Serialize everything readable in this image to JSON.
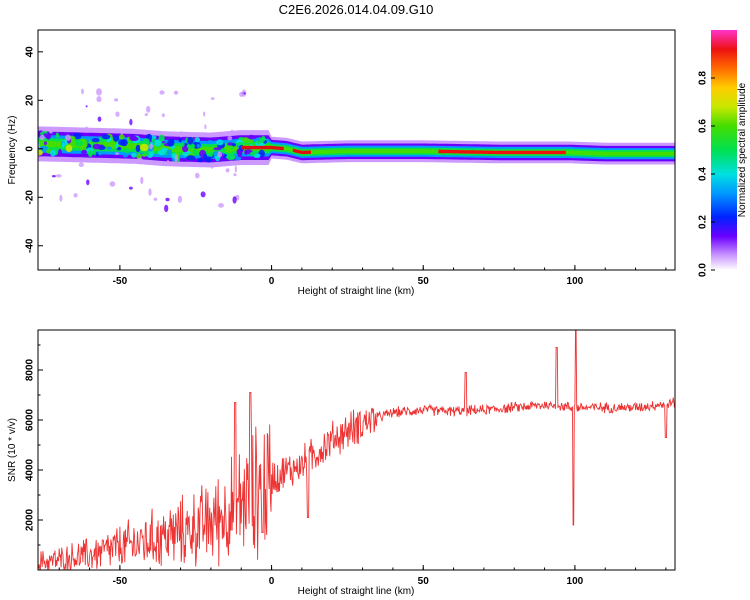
{
  "title": "C2E6.2026.014.04.09.G10",
  "chart_data": [
    {
      "type": "heatmap",
      "xlabel": "Height of straight line (km)",
      "ylabel": "Frequency (Hz)",
      "xlim": [
        -77,
        133
      ],
      "ylim": [
        -50,
        49
      ],
      "xticks": [
        "-50",
        "0",
        "50",
        "100"
      ],
      "yticks": [
        "-40",
        "-20",
        "0",
        "20",
        "40"
      ],
      "ridge": [
        {
          "x": -75,
          "f": 2.0
        },
        {
          "x": -60,
          "f": 1.5
        },
        {
          "x": -45,
          "f": 1.0
        },
        {
          "x": -35,
          "f": 0.0
        },
        {
          "x": -20,
          "f": -0.5
        },
        {
          "x": -10,
          "f": 0.5
        },
        {
          "x": 0,
          "f": 0.5
        },
        {
          "x": 5,
          "f": 0.0
        },
        {
          "x": 10,
          "f": -1.5
        },
        {
          "x": 25,
          "f": -1.0
        },
        {
          "x": 50,
          "f": -1.0
        },
        {
          "x": 75,
          "f": -1.5
        },
        {
          "x": 98,
          "f": -1.5
        },
        {
          "x": 110,
          "f": -2.0
        },
        {
          "x": 133,
          "f": -2.0
        }
      ],
      "colorbar": {
        "label": "Normalized spectral amplitude",
        "range": [
          0,
          1
        ],
        "ticks": [
          "0.0",
          "0.2",
          "0.4",
          "0.6",
          "0.8"
        ]
      }
    },
    {
      "type": "line",
      "xlabel": "Height of straight line (km)",
      "ylabel": "SNR (10 * v/v)",
      "xlim": [
        -77,
        133
      ],
      "ylim": [
        0,
        9600
      ],
      "xticks": [
        "-50",
        "0",
        "50",
        "100"
      ],
      "yticks": [
        "2000",
        "4000",
        "6000",
        "8000"
      ],
      "series": [
        {
          "name": "SNR",
          "color": "#ee3333",
          "trend": [
            {
              "x": -77,
              "y": 300
            },
            {
              "x": -70,
              "y": 400
            },
            {
              "x": -60,
              "y": 600
            },
            {
              "x": -50,
              "y": 900
            },
            {
              "x": -40,
              "y": 1200
            },
            {
              "x": -30,
              "y": 1500
            },
            {
              "x": -20,
              "y": 1900
            },
            {
              "x": -10,
              "y": 2700
            },
            {
              "x": 0,
              "y": 3700
            },
            {
              "x": 10,
              "y": 4200
            },
            {
              "x": 20,
              "y": 5200
            },
            {
              "x": 30,
              "y": 5900
            },
            {
              "x": 40,
              "y": 6300
            },
            {
              "x": 50,
              "y": 6400
            },
            {
              "x": 60,
              "y": 6350
            },
            {
              "x": 70,
              "y": 6400
            },
            {
              "x": 80,
              "y": 6500
            },
            {
              "x": 90,
              "y": 6600
            },
            {
              "x": 100,
              "y": 6500
            },
            {
              "x": 110,
              "y": 6500
            },
            {
              "x": 120,
              "y": 6500
            },
            {
              "x": 133,
              "y": 6700
            }
          ],
          "spikes": [
            {
              "x": -12,
              "y": 6700
            },
            {
              "x": -7,
              "y": 7100
            },
            {
              "x": -3,
              "y": 1500
            },
            {
              "x": 12,
              "y": 2100
            },
            {
              "x": 64,
              "y": 7900
            },
            {
              "x": 94,
              "y": 8900
            },
            {
              "x": 99.5,
              "y": 1800
            },
            {
              "x": 100.3,
              "y": 9600
            },
            {
              "x": 130,
              "y": 5300
            }
          ]
        }
      ]
    }
  ]
}
